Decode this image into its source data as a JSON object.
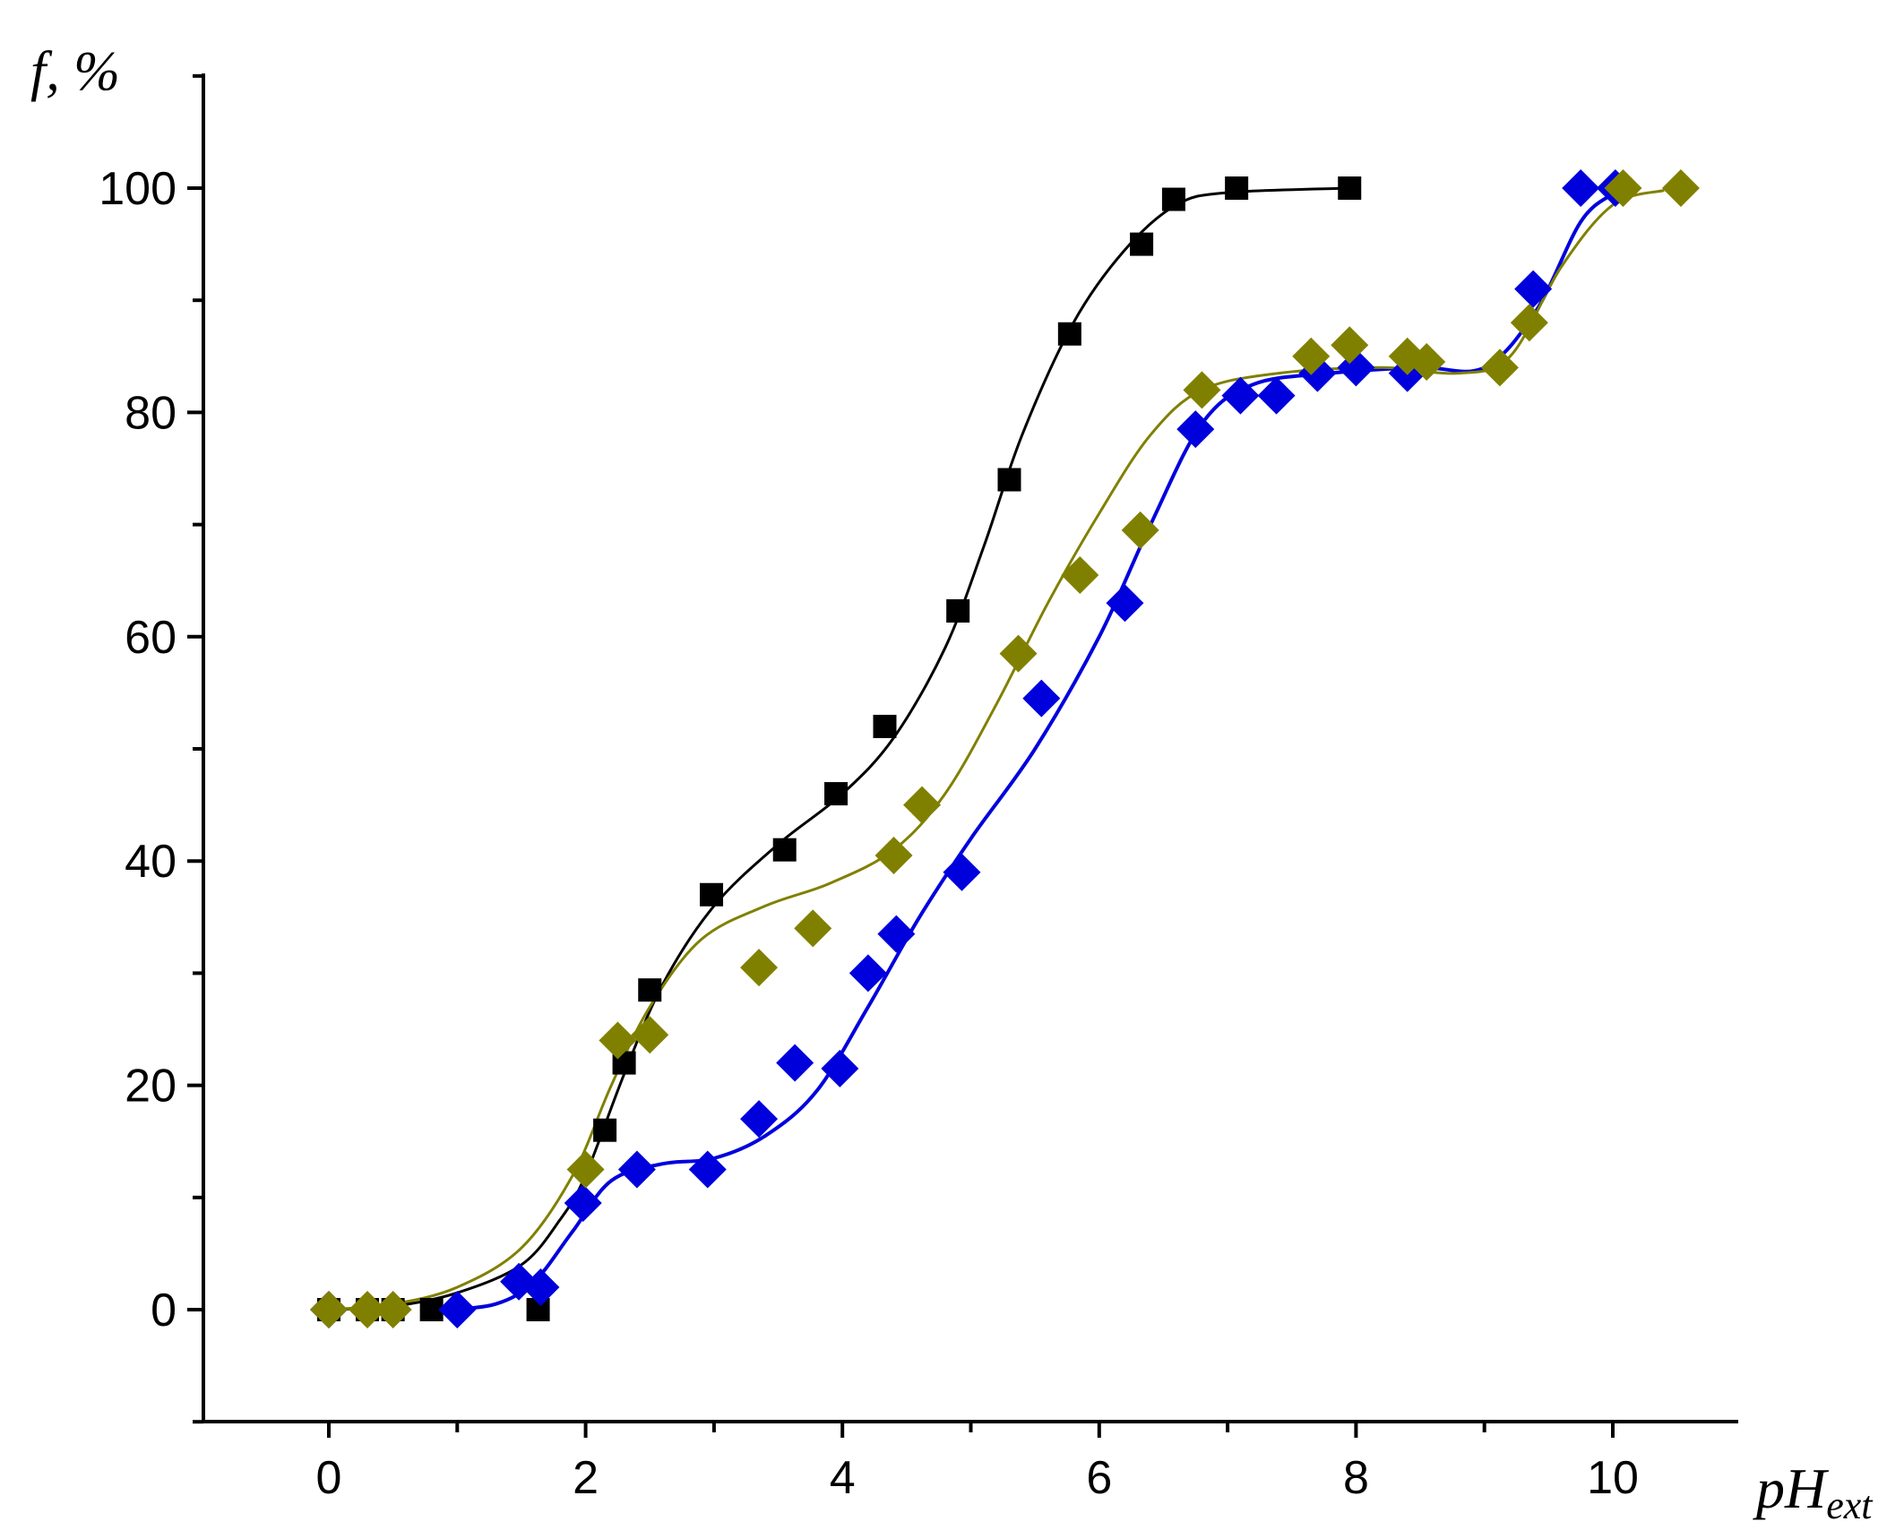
{
  "chart_data": {
    "type": "scatter",
    "ylabel": "f, %",
    "xlabel_main": "pH",
    "xlabel_sub": "ext",
    "xlim": [
      -1,
      10.6
    ],
    "ylim": [
      -10,
      110
    ],
    "x_ticks": [
      0,
      2,
      4,
      6,
      8,
      10
    ],
    "x_tick_labels": [
      "0",
      "2",
      "4",
      "6",
      "8",
      "10"
    ],
    "y_ticks": [
      0,
      20,
      40,
      60,
      80,
      100
    ],
    "y_tick_labels": [
      "0",
      "20",
      "40",
      "60",
      "80",
      "100"
    ],
    "grid": false,
    "series": [
      {
        "marker": "square",
        "color": "#000000",
        "points": [
          [
            0,
            0
          ],
          [
            0.3,
            0
          ],
          [
            0.5,
            0
          ],
          [
            0.8,
            0
          ],
          [
            1.63,
            0
          ],
          [
            2.15,
            16
          ],
          [
            2.3,
            22
          ],
          [
            2.5,
            28.5
          ],
          [
            2.98,
            37
          ],
          [
            3.55,
            41
          ],
          [
            3.95,
            46
          ],
          [
            4.33,
            52
          ],
          [
            4.9,
            62.3
          ],
          [
            5.3,
            74
          ],
          [
            5.77,
            87
          ],
          [
            6.33,
            95
          ],
          [
            6.58,
            99
          ],
          [
            7.07,
            100
          ],
          [
            7.95,
            100
          ]
        ],
        "curve": [
          [
            0,
            0
          ],
          [
            0.5,
            0.3
          ],
          [
            1.0,
            1.5
          ],
          [
            1.5,
            4
          ],
          [
            1.8,
            8
          ],
          [
            2.0,
            12
          ],
          [
            2.3,
            21
          ],
          [
            2.6,
            29
          ],
          [
            3.0,
            36
          ],
          [
            3.5,
            41.5
          ],
          [
            4.0,
            46
          ],
          [
            4.4,
            51
          ],
          [
            4.8,
            59
          ],
          [
            5.1,
            68
          ],
          [
            5.4,
            78
          ],
          [
            5.8,
            88
          ],
          [
            6.2,
            94.5
          ],
          [
            6.6,
            98.5
          ],
          [
            7.0,
            99.6
          ],
          [
            7.95,
            100
          ]
        ]
      },
      {
        "marker": "diamond",
        "color": "#0000dd",
        "points": [
          [
            0,
            0
          ],
          [
            1.0,
            0
          ],
          [
            1.48,
            2.5
          ],
          [
            1.65,
            2
          ],
          [
            1.98,
            9.5
          ],
          [
            2.4,
            12.5
          ],
          [
            2.95,
            12.5
          ],
          [
            3.35,
            17
          ],
          [
            3.63,
            22
          ],
          [
            3.98,
            21.5
          ],
          [
            4.2,
            30
          ],
          [
            4.42,
            33.5
          ],
          [
            4.93,
            39
          ],
          [
            5.55,
            54.5
          ],
          [
            6.2,
            63
          ],
          [
            6.75,
            78.5
          ],
          [
            7.1,
            81.5
          ],
          [
            7.38,
            81.5
          ],
          [
            7.7,
            83.5
          ],
          [
            8.0,
            84
          ],
          [
            8.4,
            83.5
          ],
          [
            9.38,
            91
          ],
          [
            9.75,
            100
          ],
          [
            10.02,
            100
          ]
        ],
        "curve": [
          [
            0.9,
            0
          ],
          [
            1.3,
            0.5
          ],
          [
            1.6,
            2.5
          ],
          [
            1.9,
            7
          ],
          [
            2.2,
            11.5
          ],
          [
            2.6,
            13
          ],
          [
            3.0,
            13.5
          ],
          [
            3.4,
            15.5
          ],
          [
            3.8,
            19.5
          ],
          [
            4.2,
            27
          ],
          [
            4.6,
            35
          ],
          [
            5.0,
            42
          ],
          [
            5.5,
            50
          ],
          [
            6.0,
            60
          ],
          [
            6.4,
            70
          ],
          [
            6.8,
            79
          ],
          [
            7.2,
            82.5
          ],
          [
            7.8,
            83.5
          ],
          [
            8.5,
            84
          ],
          [
            9.0,
            84
          ],
          [
            9.4,
            89
          ],
          [
            9.75,
            97
          ],
          [
            10.0,
            99.5
          ]
        ]
      },
      {
        "marker": "diamond",
        "color": "#808000",
        "points": [
          [
            0,
            0
          ],
          [
            0.3,
            0
          ],
          [
            0.5,
            0
          ],
          [
            2.0,
            12.5
          ],
          [
            2.25,
            24
          ],
          [
            2.5,
            24.5
          ],
          [
            3.35,
            30.5
          ],
          [
            3.77,
            34
          ],
          [
            4.4,
            40.5
          ],
          [
            4.62,
            45
          ],
          [
            5.37,
            58.5
          ],
          [
            5.85,
            65.5
          ],
          [
            6.32,
            69.5
          ],
          [
            6.8,
            82
          ],
          [
            7.65,
            85
          ],
          [
            7.95,
            86
          ],
          [
            8.4,
            85
          ],
          [
            8.55,
            84.5
          ],
          [
            9.12,
            84
          ],
          [
            9.35,
            88
          ],
          [
            10.08,
            100
          ],
          [
            10.53,
            100
          ]
        ],
        "curve": [
          [
            0,
            0
          ],
          [
            0.5,
            0.5
          ],
          [
            1.0,
            2
          ],
          [
            1.5,
            5.5
          ],
          [
            1.9,
            12
          ],
          [
            2.2,
            20
          ],
          [
            2.5,
            27
          ],
          [
            2.9,
            33
          ],
          [
            3.4,
            36
          ],
          [
            3.9,
            38
          ],
          [
            4.4,
            41
          ],
          [
            4.8,
            46
          ],
          [
            5.2,
            54
          ],
          [
            5.6,
            63
          ],
          [
            6.0,
            71
          ],
          [
            6.4,
            78
          ],
          [
            6.8,
            82
          ],
          [
            7.4,
            83.5
          ],
          [
            8.2,
            84
          ],
          [
            8.8,
            83.5
          ],
          [
            9.2,
            85
          ],
          [
            9.6,
            93
          ],
          [
            10.0,
            98.5
          ],
          [
            10.4,
            99.8
          ]
        ]
      }
    ]
  }
}
